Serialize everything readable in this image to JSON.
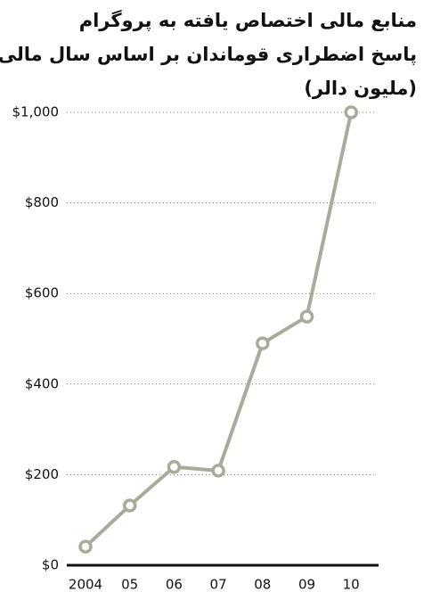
{
  "chart_data": {
    "type": "line",
    "title": [
      "منابع مالی اختصاص یافته به پروگرام",
      "پاسخ اضطراری قوماندان بر اساس سال مالی",
      "(ملیون دالر)"
    ],
    "categories": [
      "2004",
      "05",
      "06",
      "07",
      "08",
      "09",
      "10"
    ],
    "values": [
      41,
      132,
      217,
      209,
      490,
      549,
      1000
    ],
    "color": "#a9ab9a",
    "ylim": [
      0,
      1000
    ],
    "yticks": [
      {
        "value": 0,
        "label": "$0"
      },
      {
        "value": 200,
        "label": "$200"
      },
      {
        "value": 400,
        "label": "$400"
      },
      {
        "value": 600,
        "label": "$600"
      },
      {
        "value": 800,
        "label": "$800"
      },
      {
        "value": 1000,
        "label": "$1,000"
      }
    ],
    "grid": true
  }
}
